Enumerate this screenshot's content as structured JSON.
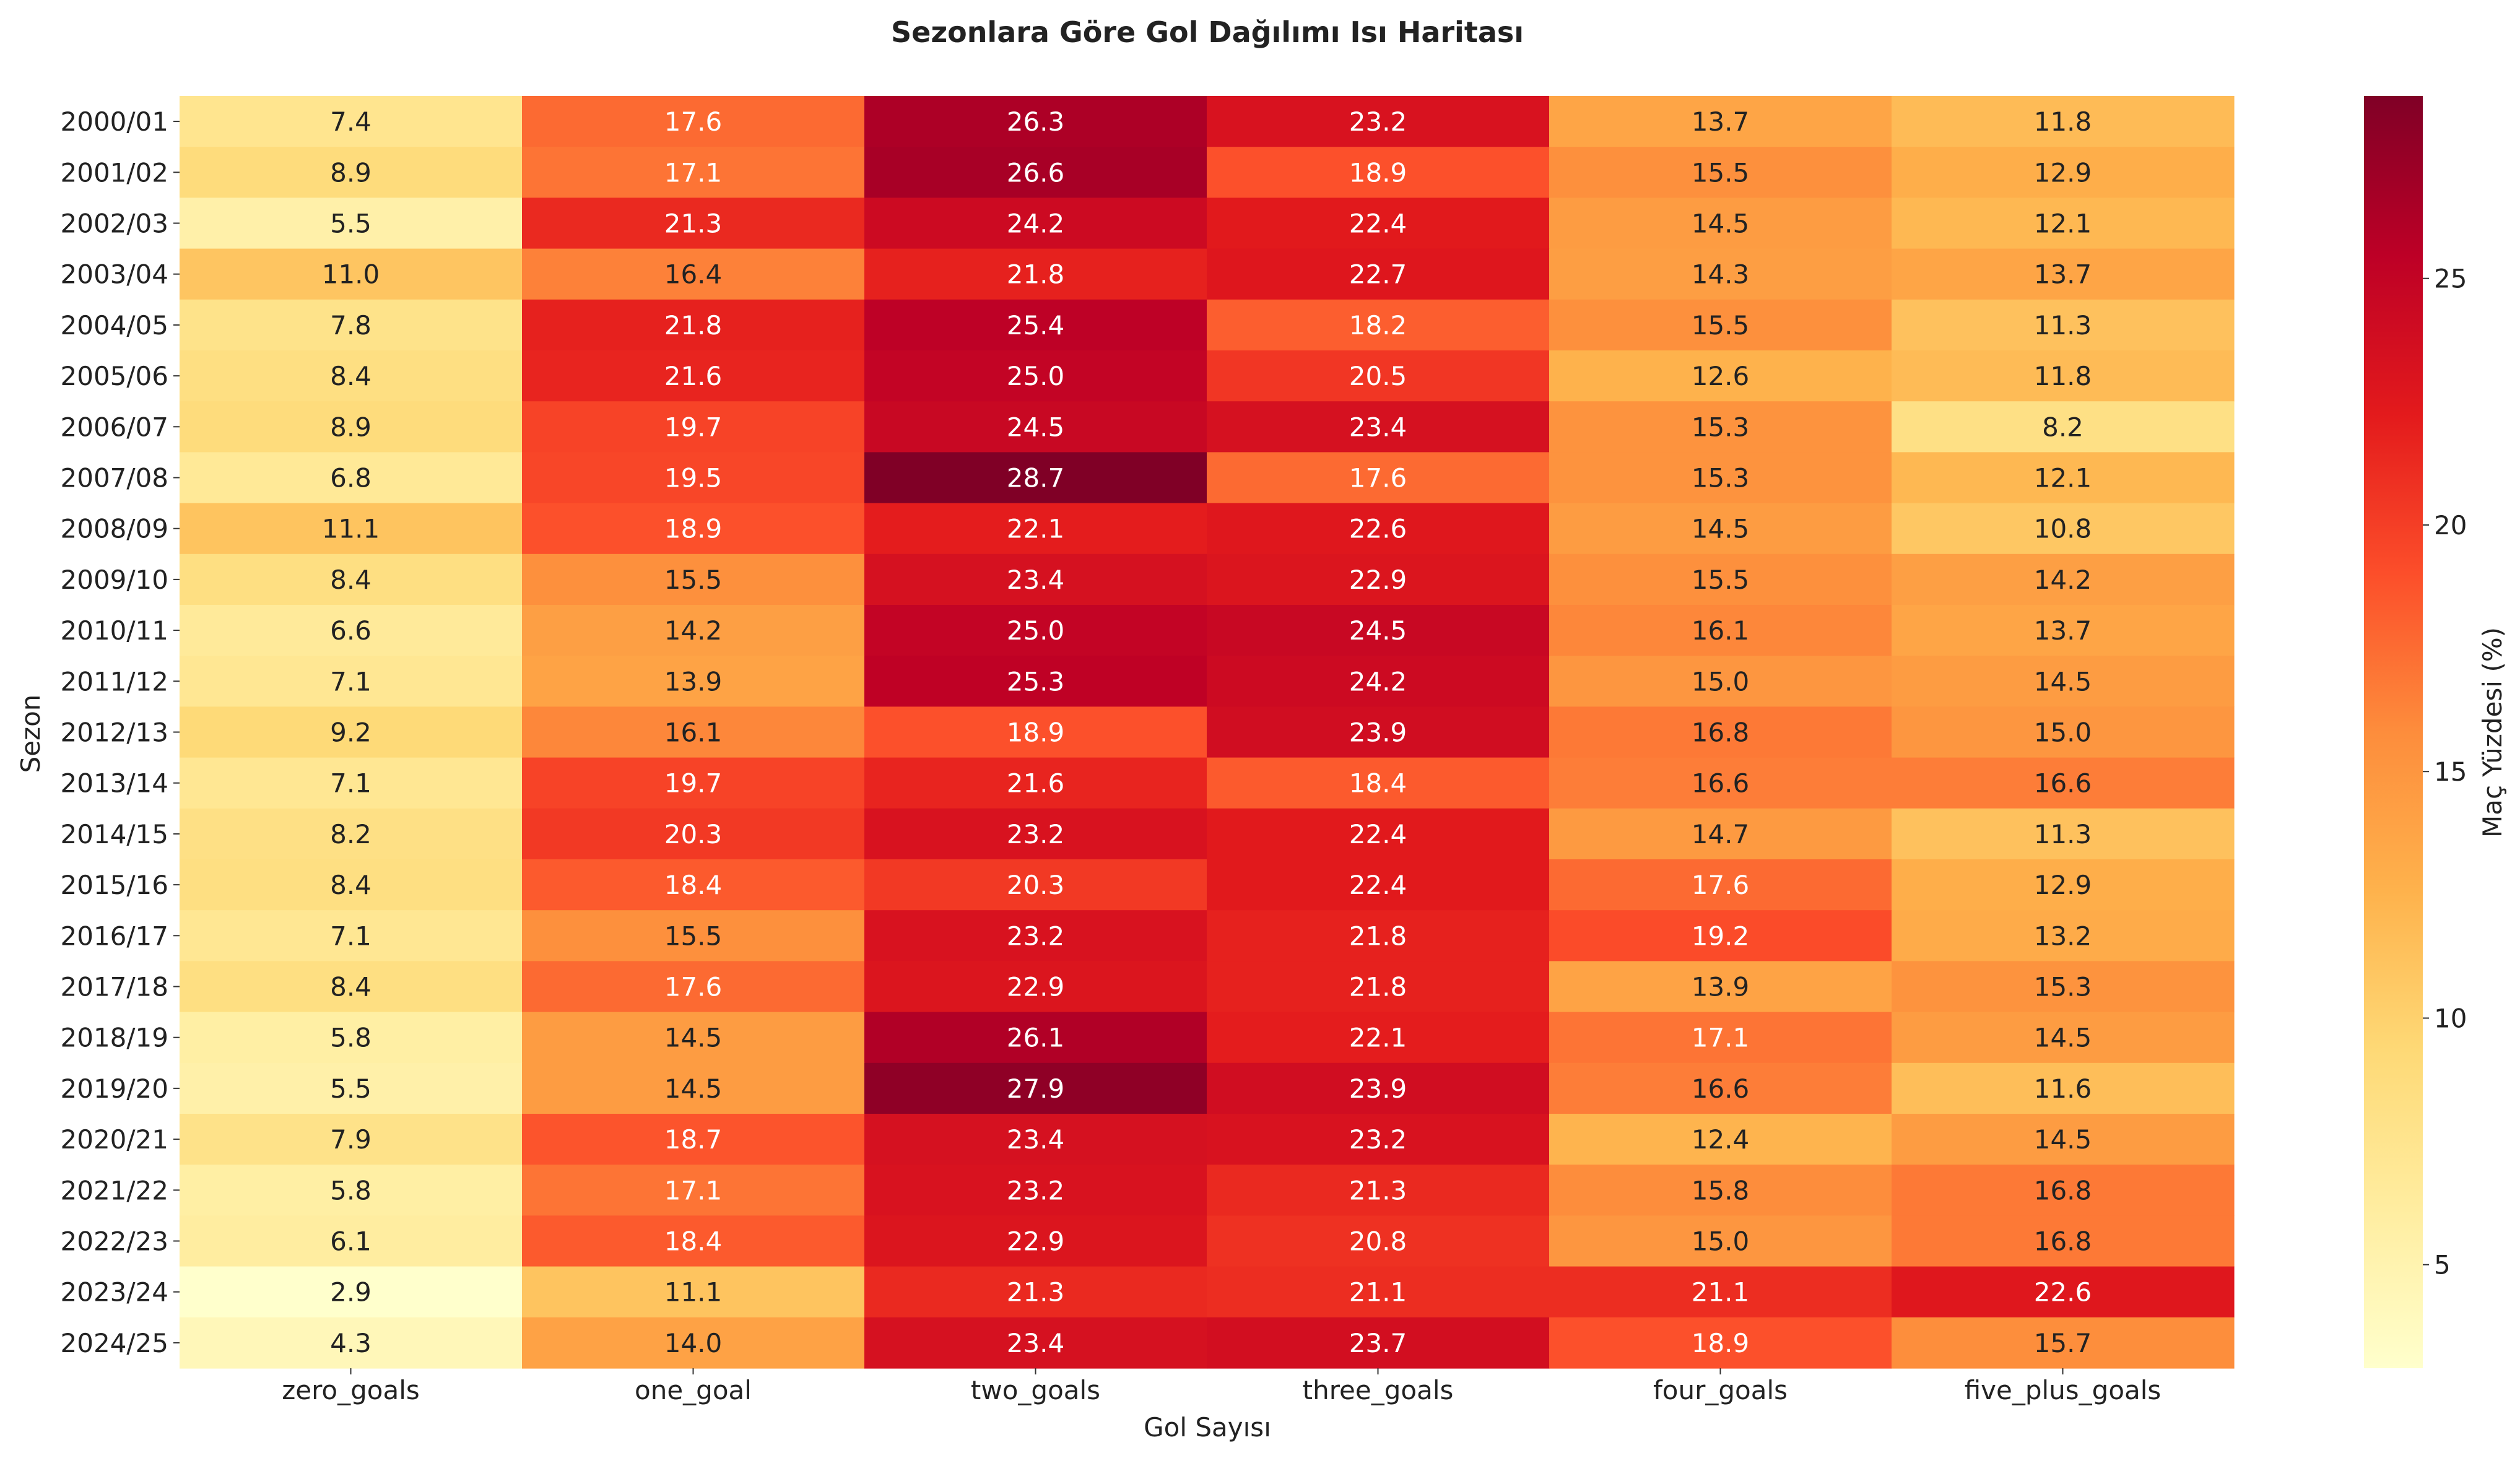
{
  "chart_data": {
    "type": "heatmap",
    "title": "Sezonlara Göre Gol Dağılımı Isı Haritası",
    "xlabel": "Gol Sayısı",
    "ylabel": "Sezon",
    "colorbar_label": "Maç Yüzdesi (%)",
    "colorbar_ticks": [
      "5",
      "10",
      "15",
      "20",
      "25"
    ],
    "colorbar_tick_values": [
      5,
      10,
      15,
      20,
      25
    ],
    "colorbar_range": [
      2.9,
      28.7
    ],
    "colormap": "YlOrRd",
    "columns": [
      "zero_goals",
      "one_goal",
      "two_goals",
      "three_goals",
      "four_goals",
      "five_plus_goals"
    ],
    "rows": [
      "2000/01",
      "2001/02",
      "2002/03",
      "2003/04",
      "2004/05",
      "2005/06",
      "2006/07",
      "2007/08",
      "2008/09",
      "2009/10",
      "2010/11",
      "2011/12",
      "2012/13",
      "2013/14",
      "2014/15",
      "2015/16",
      "2016/17",
      "2017/18",
      "2018/19",
      "2019/20",
      "2020/21",
      "2021/22",
      "2022/23",
      "2023/24",
      "2024/25"
    ],
    "values": [
      [
        "7.4",
        "17.6",
        "26.3",
        "23.2",
        "13.7",
        "11.8"
      ],
      [
        "8.9",
        "17.1",
        "26.6",
        "18.9",
        "15.5",
        "12.9"
      ],
      [
        "5.5",
        "21.3",
        "24.2",
        "22.4",
        "14.5",
        "12.1"
      ],
      [
        "11.0",
        "16.4",
        "21.8",
        "22.7",
        "14.3",
        "13.7"
      ],
      [
        "7.8",
        "21.8",
        "25.4",
        "18.2",
        "15.5",
        "11.3"
      ],
      [
        "8.4",
        "21.6",
        "25.0",
        "20.5",
        "12.6",
        "11.8"
      ],
      [
        "8.9",
        "19.7",
        "24.5",
        "23.4",
        "15.3",
        "8.2"
      ],
      [
        "6.8",
        "19.5",
        "28.7",
        "17.6",
        "15.3",
        "12.1"
      ],
      [
        "11.1",
        "18.9",
        "22.1",
        "22.6",
        "14.5",
        "10.8"
      ],
      [
        "8.4",
        "15.5",
        "23.4",
        "22.9",
        "15.5",
        "14.2"
      ],
      [
        "6.6",
        "14.2",
        "25.0",
        "24.5",
        "16.1",
        "13.7"
      ],
      [
        "7.1",
        "13.9",
        "25.3",
        "24.2",
        "15.0",
        "14.5"
      ],
      [
        "9.2",
        "16.1",
        "18.9",
        "23.9",
        "16.8",
        "15.0"
      ],
      [
        "7.1",
        "19.7",
        "21.6",
        "18.4",
        "16.6",
        "16.6"
      ],
      [
        "8.2",
        "20.3",
        "23.2",
        "22.4",
        "14.7",
        "11.3"
      ],
      [
        "8.4",
        "18.4",
        "20.3",
        "22.4",
        "17.6",
        "12.9"
      ],
      [
        "7.1",
        "15.5",
        "23.2",
        "21.8",
        "19.2",
        "13.2"
      ],
      [
        "8.4",
        "17.6",
        "22.9",
        "21.8",
        "13.9",
        "15.3"
      ],
      [
        "5.8",
        "14.5",
        "26.1",
        "22.1",
        "17.1",
        "14.5"
      ],
      [
        "5.5",
        "14.5",
        "27.9",
        "23.9",
        "16.6",
        "11.6"
      ],
      [
        "7.9",
        "18.7",
        "23.4",
        "23.2",
        "12.4",
        "14.5"
      ],
      [
        "5.8",
        "17.1",
        "23.2",
        "21.3",
        "15.8",
        "16.8"
      ],
      [
        "6.1",
        "18.4",
        "22.9",
        "20.8",
        "15.0",
        "16.8"
      ],
      [
        "2.9",
        "11.1",
        "21.3",
        "21.1",
        "21.1",
        "22.6"
      ],
      [
        "4.3",
        "14.0",
        "23.4",
        "23.7",
        "18.9",
        "15.7"
      ]
    ]
  }
}
